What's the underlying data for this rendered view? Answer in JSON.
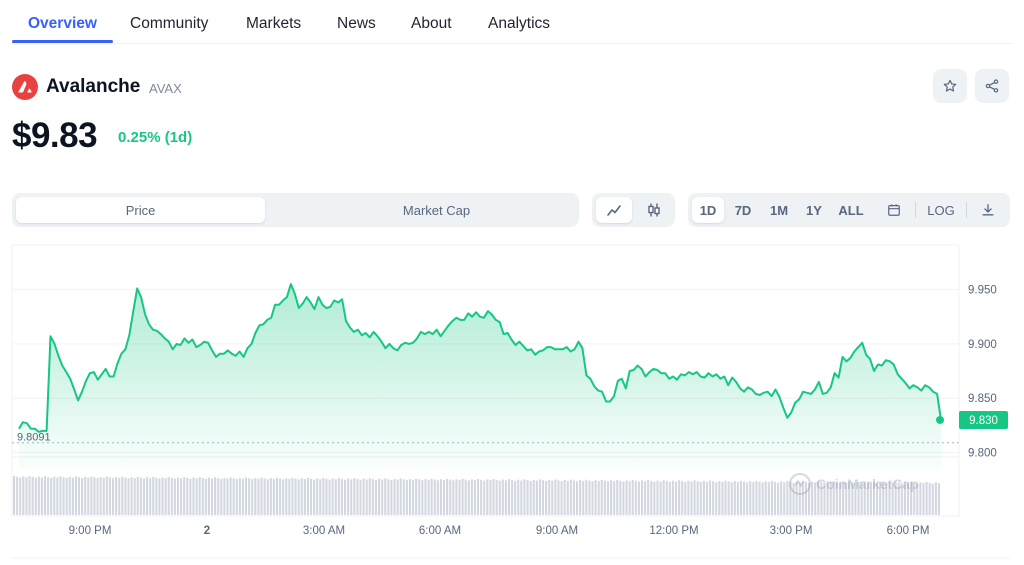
{
  "tabs": [
    {
      "label": "Overview",
      "active": true
    },
    {
      "label": "Community"
    },
    {
      "label": "Markets"
    },
    {
      "label": "News"
    },
    {
      "label": "About"
    },
    {
      "label": "Analytics"
    }
  ],
  "coin": {
    "name": "Avalanche",
    "symbol": "AVAX",
    "price": "$9.83",
    "change": "0.25% (1d)",
    "logo_icon": "avalanche-logo",
    "colors": {
      "logo": "#e84142",
      "positive": "#16c784",
      "accent": "#3861fb"
    }
  },
  "actions": {
    "star_icon": "star-icon",
    "share_icon": "share-icon"
  },
  "chart_type_toggle": {
    "options": [
      "Price",
      "Market Cap"
    ],
    "selected": "Price"
  },
  "chart_style": {
    "options": [
      "line-chart-icon",
      "candlestick-icon"
    ],
    "selected": "line-chart-icon"
  },
  "ranges": {
    "options": [
      "1D",
      "7D",
      "1M",
      "1Y",
      "ALL"
    ],
    "selected": "1D",
    "calendar_icon": "calendar-icon",
    "log_label": "LOG",
    "download_icon": "download-icon"
  },
  "chart_data": {
    "type": "area",
    "series": [
      {
        "values": [
          9.822,
          9.828,
          9.827,
          9.822,
          9.822,
          9.819,
          9.82,
          9.82,
          9.907,
          9.9,
          9.889,
          9.88,
          9.874,
          9.868,
          9.858,
          9.848,
          9.856,
          9.866,
          9.873,
          9.874,
          9.867,
          9.872,
          9.877,
          9.87,
          9.87,
          9.882,
          9.891,
          9.895,
          9.908,
          9.93,
          9.951,
          9.943,
          9.927,
          9.918,
          9.913,
          9.912,
          9.909,
          9.905,
          9.902,
          9.895,
          9.9,
          9.899,
          9.905,
          9.901,
          9.904,
          9.897,
          9.899,
          9.902,
          9.901,
          9.894,
          9.888,
          9.891,
          9.891,
          9.894,
          9.891,
          9.889,
          9.893,
          9.888,
          9.896,
          9.9,
          9.91,
          9.917,
          9.918,
          9.922,
          9.924,
          9.936,
          9.936,
          9.94,
          9.943,
          9.955,
          9.946,
          9.933,
          9.937,
          9.943,
          9.938,
          9.932,
          9.943,
          9.936,
          9.933,
          9.934,
          9.94,
          9.938,
          9.941,
          9.921,
          9.915,
          9.911,
          9.913,
          9.908,
          9.91,
          9.906,
          9.911,
          9.907,
          9.902,
          9.896,
          9.9,
          9.896,
          9.894,
          9.899,
          9.901,
          9.9,
          9.901,
          9.905,
          9.911,
          9.909,
          9.911,
          9.909,
          9.913,
          9.907,
          9.912,
          9.917,
          9.921,
          9.924,
          9.922,
          9.922,
          9.928,
          9.925,
          9.929,
          9.925,
          9.924,
          9.93,
          9.927,
          9.922,
          9.92,
          9.909,
          9.91,
          9.904,
          9.899,
          9.902,
          9.898,
          9.894,
          9.895,
          9.89,
          9.893,
          9.894,
          9.897,
          9.897,
          9.895,
          9.895,
          9.895,
          9.897,
          9.893,
          9.895,
          9.902,
          9.896,
          9.871,
          9.868,
          9.861,
          9.857,
          9.856,
          9.847,
          9.847,
          9.852,
          9.866,
          9.868,
          9.859,
          9.875,
          9.876,
          9.88,
          9.877,
          9.87,
          9.874,
          9.877,
          9.876,
          9.873,
          9.873,
          9.868,
          9.87,
          9.867,
          9.872,
          9.871,
          9.874,
          9.872,
          9.874,
          9.87,
          9.869,
          9.873,
          9.87,
          9.872,
          9.868,
          9.87,
          9.862,
          9.869,
          9.865,
          9.859,
          9.856,
          9.86,
          9.858,
          9.854,
          9.853,
          9.855,
          9.856,
          9.852,
          9.858,
          9.851,
          9.841,
          9.832,
          9.837,
          9.846,
          9.849,
          9.856,
          9.855,
          9.854,
          9.858,
          9.865,
          9.854,
          9.855,
          9.86,
          9.873,
          9.869,
          9.888,
          9.884,
          9.887,
          9.893,
          9.897,
          9.901,
          9.89,
          9.886,
          9.875,
          9.881,
          9.88,
          9.885,
          9.884,
          9.881,
          9.872,
          9.868,
          9.864,
          9.859,
          9.862,
          9.86,
          9.857,
          9.862,
          9.86,
          9.856,
          9.854,
          9.83
        ]
      }
    ],
    "x_ticks": [
      "9:00 PM",
      "2",
      "3:00 AM",
      "6:00 AM",
      "9:00 AM",
      "12:00 PM",
      "3:00 PM",
      "6:00 PM"
    ],
    "y_ticks": [
      "9.950",
      "9.900",
      "9.850",
      "9.800"
    ],
    "y_range": [
      9.784,
      9.99
    ],
    "reference_line": {
      "label": "9.8091",
      "value": 9.8091
    },
    "current_label": "9.830",
    "current_value": 9.83,
    "volume": "gray bars under price",
    "watermark": "CoinMarketCap",
    "line_color": "#16c784"
  }
}
